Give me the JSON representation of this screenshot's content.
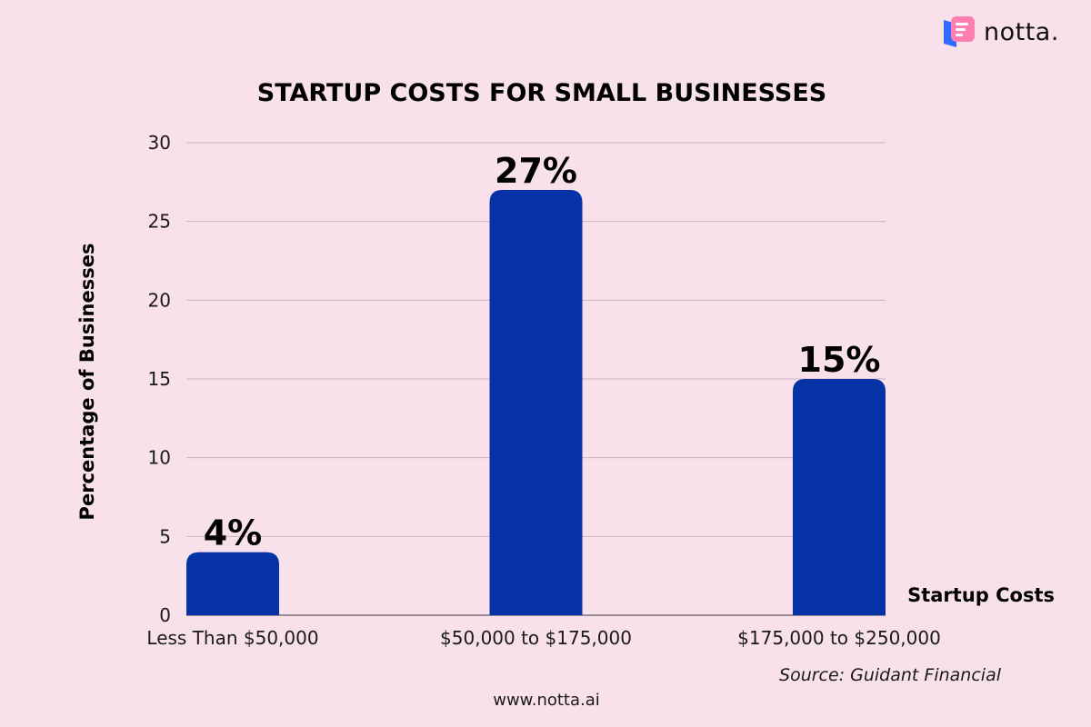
{
  "brand": {
    "logo_icon": "notta-logo-icon",
    "name": "notta.",
    "icon_colors": [
      "#ff6fa8",
      "#ff3d7f",
      "#2f6bff"
    ]
  },
  "chart_data": {
    "type": "bar",
    "title": "STARTUP COSTS FOR SMALL BUSINESSES",
    "xlabel": "Startup Costs",
    "ylabel": "Percentage of Businesses",
    "categories": [
      "Less Than $50,000",
      "$50,000 to $175,000",
      "$175,000 to $250,000"
    ],
    "values": [
      4,
      27,
      15
    ],
    "data_labels": [
      "4%",
      "27%",
      "15%"
    ],
    "ylim": [
      0,
      30
    ],
    "yticks": [
      0,
      5,
      10,
      15,
      20,
      25,
      30
    ],
    "grid": true,
    "bar_color": "#0533a6",
    "grid_color": "#c9b3c0",
    "source": "Source: Guidant Financial"
  },
  "footer": {
    "url": "www.notta.ai"
  }
}
